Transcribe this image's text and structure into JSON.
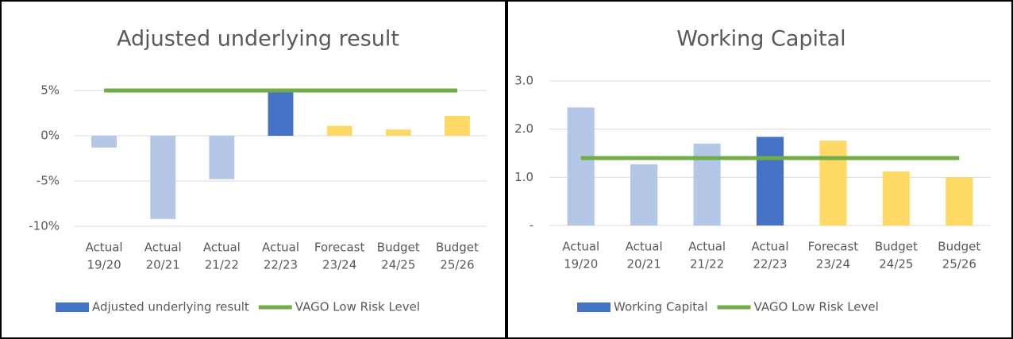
{
  "chart_data": [
    {
      "type": "bar",
      "title": "Adjusted underlying result",
      "categories": [
        [
          "Actual",
          "19/20"
        ],
        [
          "Actual",
          "20/21"
        ],
        [
          "Actual",
          "21/22"
        ],
        [
          "Actual",
          "22/23"
        ],
        [
          "Forecast",
          "23/24"
        ],
        [
          "Budget",
          "24/25"
        ],
        [
          "Budget",
          "25/26"
        ]
      ],
      "series": [
        {
          "name": "Adjusted underlying result",
          "type": "bar",
          "color": "#4472c4",
          "colors": [
            "#b4c7e7",
            "#b4c7e7",
            "#b4c7e7",
            "#4472c4",
            "#ffd966",
            "#ffd966",
            "#ffd966"
          ],
          "values": [
            -1.3,
            -9.2,
            -4.8,
            4.8,
            1.1,
            0.7,
            2.2
          ]
        },
        {
          "name": "VAGO Low Risk Level",
          "type": "line",
          "color": "#70ad47",
          "values": [
            5,
            5,
            5,
            5,
            5,
            5,
            5
          ]
        }
      ],
      "ylim": [
        -10,
        5
      ],
      "yticks": [
        {
          "value": -10,
          "label": "-10%"
        },
        {
          "value": -5,
          "label": "-5%"
        },
        {
          "value": 0,
          "label": "0%"
        },
        {
          "value": 5,
          "label": "5%"
        }
      ],
      "grid": true
    },
    {
      "type": "bar",
      "title": "Working Capital",
      "categories": [
        [
          "Actual",
          "19/20"
        ],
        [
          "Actual",
          "20/21"
        ],
        [
          "Actual",
          "21/22"
        ],
        [
          "Actual",
          "22/23"
        ],
        [
          "Forecast",
          "23/24"
        ],
        [
          "Budget",
          "24/25"
        ],
        [
          "Budget",
          "25/26"
        ]
      ],
      "series": [
        {
          "name": "Working Capital",
          "type": "bar",
          "color": "#4472c4",
          "colors": [
            "#b4c7e7",
            "#b4c7e7",
            "#b4c7e7",
            "#4472c4",
            "#ffd966",
            "#ffd966",
            "#ffd966"
          ],
          "values": [
            2.45,
            1.27,
            1.7,
            1.84,
            1.76,
            1.12,
            1.0
          ]
        },
        {
          "name": "VAGO Low Risk Level",
          "type": "line",
          "color": "#70ad47",
          "values": [
            1.4,
            1.4,
            1.4,
            1.4,
            1.4,
            1.4,
            1.4
          ]
        }
      ],
      "ylim": [
        0,
        3
      ],
      "yticks": [
        {
          "value": 0,
          "label": "-"
        },
        {
          "value": 1,
          "label": "1.0"
        },
        {
          "value": 2,
          "label": "2.0"
        },
        {
          "value": 3,
          "label": "3.0"
        }
      ],
      "grid": true
    }
  ]
}
